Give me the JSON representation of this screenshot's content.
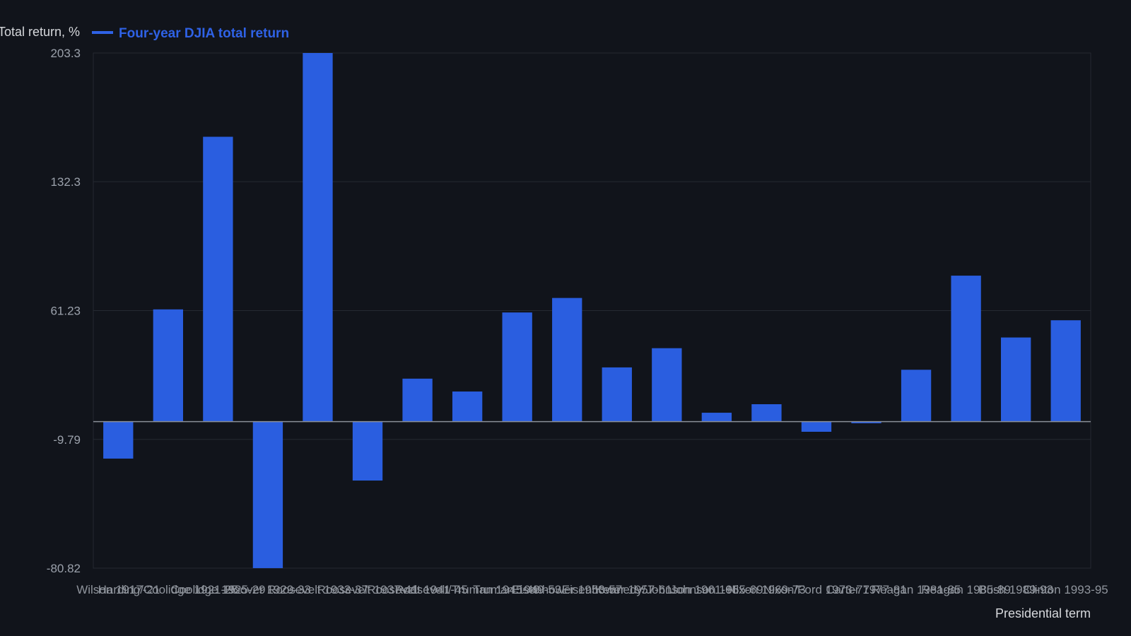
{
  "chart_data": {
    "type": "bar",
    "title": "",
    "xlabel": "Presidential term",
    "ylabel": "Total return, %",
    "legend": {
      "placement": "top-left",
      "entries": [
        "Four-year DJIA total return"
      ]
    },
    "yticks": [
      -80.82,
      -9.79,
      61.23,
      132.3,
      203.3
    ],
    "ytick_labels": [
      "-80.82",
      "-9.79",
      "61.23",
      "132.3",
      "203.3"
    ],
    "ylim": [
      -80.82,
      203.3
    ],
    "grid": true,
    "categories": [
      "Wilson 1917-21",
      "Harding/Coolidge 1921-25",
      "Coolidge 1925-29",
      "Hoover 1929-33",
      "Roosevelt 1933-37",
      "Roosevelt 1937-41",
      "Roosevelt 1941-45",
      "Roosevelt/Truman 1945-49",
      "Truman 1949-53",
      "Eisenhower 1953-57",
      "Eisenhower 1957-61",
      "Kennedy/Johnson 1961-65",
      "Johnson 1965-69",
      "Nixon 1969-73",
      "Nixon/Ford 1973-77",
      "Carter 1977-81",
      "Reagan 1981-85",
      "Reagan 1985-89",
      "Bush 1989-93",
      "Clinton 1993-95"
    ],
    "series": [
      {
        "name": "Four-year DJIA total return",
        "color": "#2a5ee0",
        "values": [
          -20.4,
          61.9,
          157.1,
          -80.8,
          203.3,
          -32.5,
          23.7,
          16.6,
          60.2,
          68.2,
          29.9,
          40.5,
          4.9,
          9.6,
          -5.6,
          -0.9,
          28.6,
          80.5,
          46.4,
          55.9
        ]
      }
    ]
  }
}
